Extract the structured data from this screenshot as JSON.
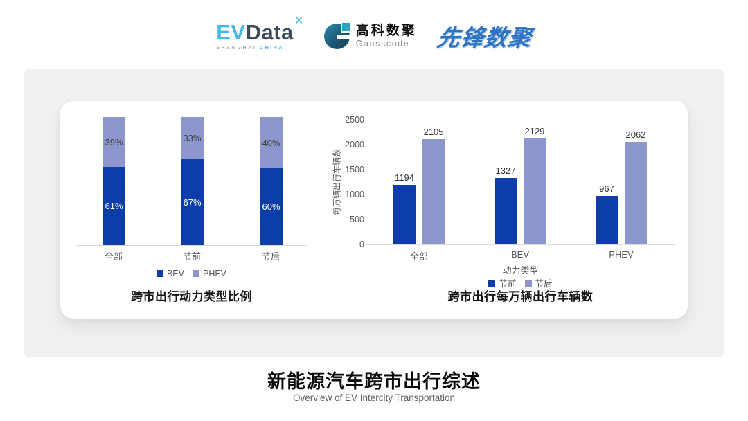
{
  "header": {
    "evdata_logo": {
      "ev": "EV",
      "data": "Data",
      "mark": "✕",
      "sub_shanghai": "SHANGHAI",
      "sub_china": "CHINA"
    },
    "gausscode_logo": {
      "name_cn": "高科数聚",
      "name_en": "Gausscode"
    },
    "pioneer_logo": {
      "text": "先锋数聚"
    }
  },
  "chart_data": [
    {
      "type": "bar",
      "variant": "stacked-100-percent",
      "title": "跨市出行动力类型比例",
      "categories": [
        "全部",
        "节前",
        "节后"
      ],
      "series": [
        {
          "name": "BEV",
          "color": "#0c3da8",
          "label_color": "#ffffff",
          "values": [
            61,
            67,
            60
          ]
        },
        {
          "name": "PHEV",
          "color": "#8d97ce",
          "label_color": "#3f3f3f",
          "values": [
            39,
            33,
            40
          ]
        }
      ],
      "value_suffix": "%",
      "ylim": [
        0,
        100
      ],
      "grid": false,
      "legend_position": "bottom"
    },
    {
      "type": "bar",
      "variant": "grouped",
      "title": "跨市出行每万辆出行车辆数",
      "categories": [
        "全部",
        "BEV",
        "PHEV"
      ],
      "xlabel": "动力类型",
      "ylabel": "每万辆出行车辆数",
      "series": [
        {
          "name": "节前",
          "color": "#0c3da8",
          "values": [
            1194,
            1327,
            967
          ]
        },
        {
          "name": "节后",
          "color": "#8d97ce",
          "values": [
            2105,
            2129,
            2062
          ]
        }
      ],
      "ylim": [
        0,
        2500
      ],
      "yticks": [
        0,
        500,
        1000,
        1500,
        2000,
        2500
      ],
      "grid": false,
      "legend_position": "bottom"
    }
  ],
  "footer": {
    "title": "新能源汽车跨市出行综述",
    "subtitle": "Overview of EV Intercity Transportation"
  },
  "colors": {
    "page_bg": "#ffffff",
    "panel_bg": "#f0f0f1",
    "card_bg": "#ffffff",
    "bev_blue": "#0c3da8",
    "phev_periwinkle": "#8d97ce",
    "axis_line": "#d9d9d9",
    "tick_text": "#595959",
    "value_text": "#333333",
    "evdata_blue": "#45b7e8",
    "evdata_slate": "#3e4d5c",
    "gauss_dark_blue": "#17506b",
    "gauss_cyan": "#2fa3c6",
    "pioneer_blue": "#2e72c4"
  }
}
